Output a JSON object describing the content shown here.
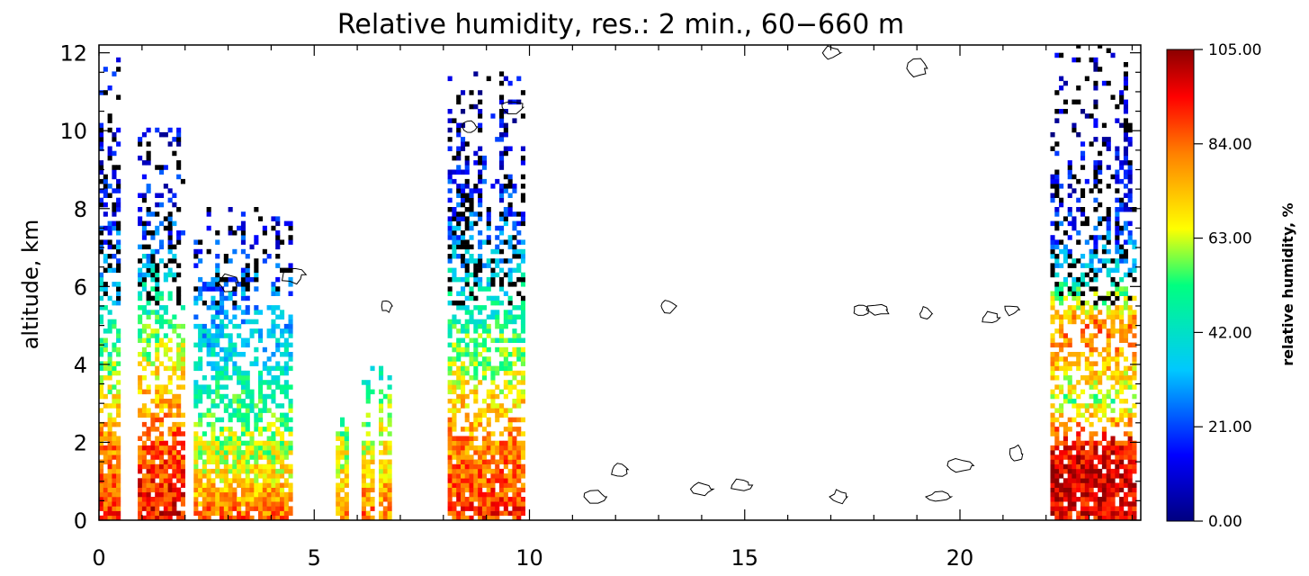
{
  "chart_data": {
    "type": "heatmap",
    "title": "Relative humidity, res.:  2 min., 60−660 m",
    "xlabel": "",
    "ylabel": "altitude, km",
    "xlim": [
      0,
      24.2
    ],
    "ylim": [
      0,
      12.2
    ],
    "x_ticks": [
      "0",
      "5",
      "10",
      "15",
      "20"
    ],
    "y_ticks": [
      "0",
      "2",
      "4",
      "6",
      "8",
      "10",
      "12"
    ],
    "colorbar": {
      "label": "relative humidity, %",
      "min": 0,
      "max": 105,
      "ticks": [
        "0.00",
        "21.00",
        "42.00",
        "63.00",
        "84.00",
        "105.00"
      ],
      "colors": [
        "#000080",
        "#0000ff",
        "#00c8ff",
        "#00ff80",
        "#ffff00",
        "#ff8000",
        "#ff0000",
        "#8b0000"
      ]
    },
    "data_blocks": [
      {
        "x0": 0.0,
        "x1": 0.5,
        "ytop": 12.2,
        "profile": [
          [
            0,
            90
          ],
          [
            2,
            80
          ],
          [
            4,
            55
          ],
          [
            6,
            35
          ],
          [
            8,
            15
          ],
          [
            12.2,
            10
          ]
        ]
      },
      {
        "x0": 0.9,
        "x1": 2.0,
        "ytop": 10.0,
        "profile": [
          [
            0,
            95
          ],
          [
            2,
            85
          ],
          [
            4,
            65
          ],
          [
            6,
            40
          ],
          [
            8,
            15
          ],
          [
            10,
            10
          ]
        ]
      },
      {
        "x0": 2.2,
        "x1": 4.5,
        "ytop": 8.0,
        "profile": [
          [
            0,
            85
          ],
          [
            1,
            70
          ],
          [
            2,
            60
          ],
          [
            4,
            40
          ],
          [
            6,
            25
          ],
          [
            8,
            10
          ]
        ]
      },
      {
        "x0": 5.5,
        "x1": 5.7,
        "ytop": 3.5,
        "profile": [
          [
            0,
            80
          ],
          [
            2,
            60
          ],
          [
            3.5,
            45
          ]
        ]
      },
      {
        "x0": 6.1,
        "x1": 6.3,
        "ytop": 4.2,
        "profile": [
          [
            0,
            85
          ],
          [
            2,
            60
          ],
          [
            4.2,
            40
          ]
        ]
      },
      {
        "x0": 6.5,
        "x1": 6.7,
        "ytop": 4.0,
        "profile": [
          [
            0,
            80
          ],
          [
            2,
            65
          ],
          [
            4,
            45
          ]
        ]
      },
      {
        "x0": 8.1,
        "x1": 9.8,
        "ytop": 11.5,
        "profile": [
          [
            0,
            90
          ],
          [
            2,
            80
          ],
          [
            4,
            60
          ],
          [
            6,
            40
          ],
          [
            8,
            20
          ],
          [
            10,
            10
          ],
          [
            11.5,
            8
          ]
        ]
      },
      {
        "x0": 22.1,
        "x1": 24.1,
        "ytop": 12.2,
        "profile": [
          [
            0,
            95
          ],
          [
            1,
            100
          ],
          [
            2,
            92
          ],
          [
            3,
            60
          ],
          [
            4,
            75
          ],
          [
            5,
            82
          ],
          [
            6,
            45
          ],
          [
            7,
            25
          ],
          [
            8,
            15
          ],
          [
            10,
            8
          ],
          [
            12.2,
            5
          ]
        ]
      }
    ],
    "cloud_contours": [
      {
        "x": 13.2,
        "y": 5.5
      },
      {
        "x": 17.7,
        "y": 5.4
      },
      {
        "x": 18.1,
        "y": 5.4
      },
      {
        "x": 19.2,
        "y": 5.3
      },
      {
        "x": 20.7,
        "y": 5.2
      },
      {
        "x": 21.2,
        "y": 5.4
      },
      {
        "x": 12.1,
        "y": 1.3
      },
      {
        "x": 11.5,
        "y": 0.6
      },
      {
        "x": 14.0,
        "y": 0.8
      },
      {
        "x": 14.9,
        "y": 0.9
      },
      {
        "x": 17.2,
        "y": 0.6
      },
      {
        "x": 19.5,
        "y": 0.6
      },
      {
        "x": 21.3,
        "y": 1.7
      },
      {
        "x": 20.0,
        "y": 1.4
      },
      {
        "x": 9.6,
        "y": 10.6
      },
      {
        "x": 8.6,
        "y": 10.1
      },
      {
        "x": 17.0,
        "y": 12.0
      },
      {
        "x": 19.0,
        "y": 11.6
      },
      {
        "x": 3.0,
        "y": 6.1
      },
      {
        "x": 4.5,
        "y": 6.3
      },
      {
        "x": 6.7,
        "y": 5.5
      }
    ]
  }
}
